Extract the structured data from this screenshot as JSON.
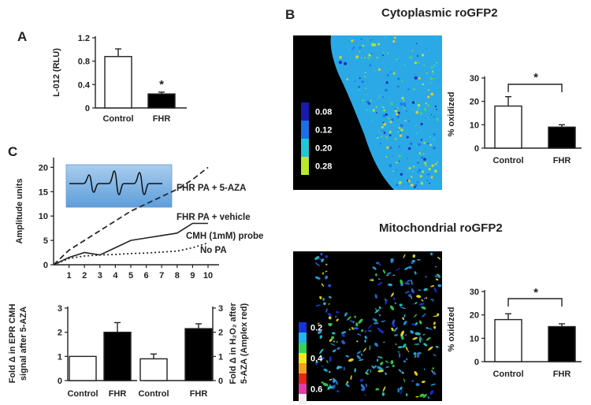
{
  "panel_letters": {
    "a": "A",
    "b": "B",
    "c": "C"
  },
  "titles": {
    "cytoplasmic": "Cytoplasmic roGFP2",
    "mitochondrial": "Mitochondrial roGFP2"
  },
  "colors": {
    "bar_control": "#ffffff",
    "bar_fhr": "#000000",
    "inset_bg_top": "#a9cdee",
    "inset_bg_bottom": "#5d9edb",
    "image_bg": "#000000",
    "cell_cyto": "#2aa9e6",
    "cell_mito": "#2d63e0"
  },
  "colorbars": {
    "cytoplasmic": [
      {
        "label": "0.08",
        "color": "#1a1ab0"
      },
      {
        "label": "0.12",
        "color": "#1c6fe8"
      },
      {
        "label": "0.20",
        "color": "#22c6d9"
      },
      {
        "label": "0.28",
        "color": "#b8e92a"
      }
    ],
    "mitochondrial": [
      {
        "label": "0.2",
        "color": "#1632d8"
      },
      {
        "label": "",
        "color": "#1fb6ef"
      },
      {
        "label": "",
        "color": "#38d45a"
      },
      {
        "label": "0.4",
        "color": "#f6e81a"
      },
      {
        "label": "",
        "color": "#f1a21c"
      },
      {
        "label": "",
        "color": "#e5261b"
      },
      {
        "label": "0.6",
        "color": "#e63ca8"
      },
      {
        "label": "",
        "color": "#f0f0f0"
      }
    ]
  },
  "chart_data": [
    {
      "id": "A",
      "type": "bar",
      "categories": [
        "Control",
        "FHR"
      ],
      "values": [
        0.88,
        0.24
      ],
      "errors": [
        0.13,
        0.03
      ],
      "ylabel": "L-012 (RLU)",
      "yticks": [
        "0",
        "0.4",
        "0.8",
        "1.2"
      ],
      "ylim": [
        0,
        1.2
      ],
      "significance": "*"
    },
    {
      "id": "B-cytoplasmic",
      "type": "bar",
      "categories": [
        "Control",
        "FHR"
      ],
      "values": [
        18,
        9
      ],
      "errors": [
        4,
        1
      ],
      "ylabel": "% oxidized",
      "yticks": [
        "0",
        "10",
        "20",
        "30"
      ],
      "ylim": [
        0,
        30
      ],
      "significance": "*"
    },
    {
      "id": "B-mitochondrial",
      "type": "bar",
      "categories": [
        "Control",
        "FHR"
      ],
      "values": [
        18,
        15
      ],
      "errors": [
        2.5,
        1.2
      ],
      "ylabel": "% oxidized",
      "yticks": [
        "0",
        "10",
        "20",
        "30"
      ],
      "ylim": [
        0,
        30
      ],
      "significance": "*"
    },
    {
      "id": "C-line",
      "type": "line",
      "x": [
        0,
        1,
        2,
        3,
        4,
        5,
        6,
        7,
        8,
        9,
        10
      ],
      "xticks": [
        "1",
        "2",
        "3",
        "4",
        "5",
        "6",
        "7",
        "8",
        "9",
        "10"
      ],
      "ylabel": "Amplitude units",
      "yticks": [
        "0",
        "5",
        "10",
        "15",
        "20"
      ],
      "ylim": [
        0,
        22
      ],
      "series": [
        {
          "name": "FHR PA + 5-AZA",
          "style": "dashed",
          "values": [
            0,
            3,
            5,
            7,
            9,
            11,
            12.5,
            14,
            15.5,
            17.5,
            20
          ]
        },
        {
          "name": "FHR PA + vehicle",
          "style": "solid",
          "values": [
            0,
            1.5,
            2.5,
            2,
            3.5,
            5,
            5.5,
            6,
            6.5,
            8.5,
            8.5
          ]
        },
        {
          "name": "No PA",
          "style": "dotted",
          "values": [
            0,
            1.3,
            1.8,
            2,
            2.1,
            2.3,
            2.4,
            2.6,
            2.8,
            3.5,
            4.5
          ]
        }
      ],
      "annotation": "CMH (1mM) probe"
    },
    {
      "id": "C-bar-EPR",
      "type": "bar",
      "categories": [
        "Control",
        "FHR"
      ],
      "values": [
        1.0,
        2.0
      ],
      "errors": [
        0,
        0.4
      ],
      "ylabel_line1": "Fold  Δ  in EPR CMH",
      "ylabel_line2": "signal after 5-AZA",
      "yticks": [
        "0",
        "1",
        "2",
        "3"
      ],
      "ylim": [
        0,
        3
      ]
    },
    {
      "id": "C-bar-H2O2",
      "type": "bar",
      "categories": [
        "Control",
        "FHR"
      ],
      "values": [
        0.9,
        2.15
      ],
      "errors": [
        0.2,
        0.2
      ],
      "ylabel_line1": "Fold  Δ  in H₂O₂ after",
      "ylabel_line2": "5-AZA (Amplex red)",
      "yticks": [
        "0",
        "1",
        "2",
        "3"
      ],
      "ylim": [
        0,
        3
      ]
    }
  ]
}
